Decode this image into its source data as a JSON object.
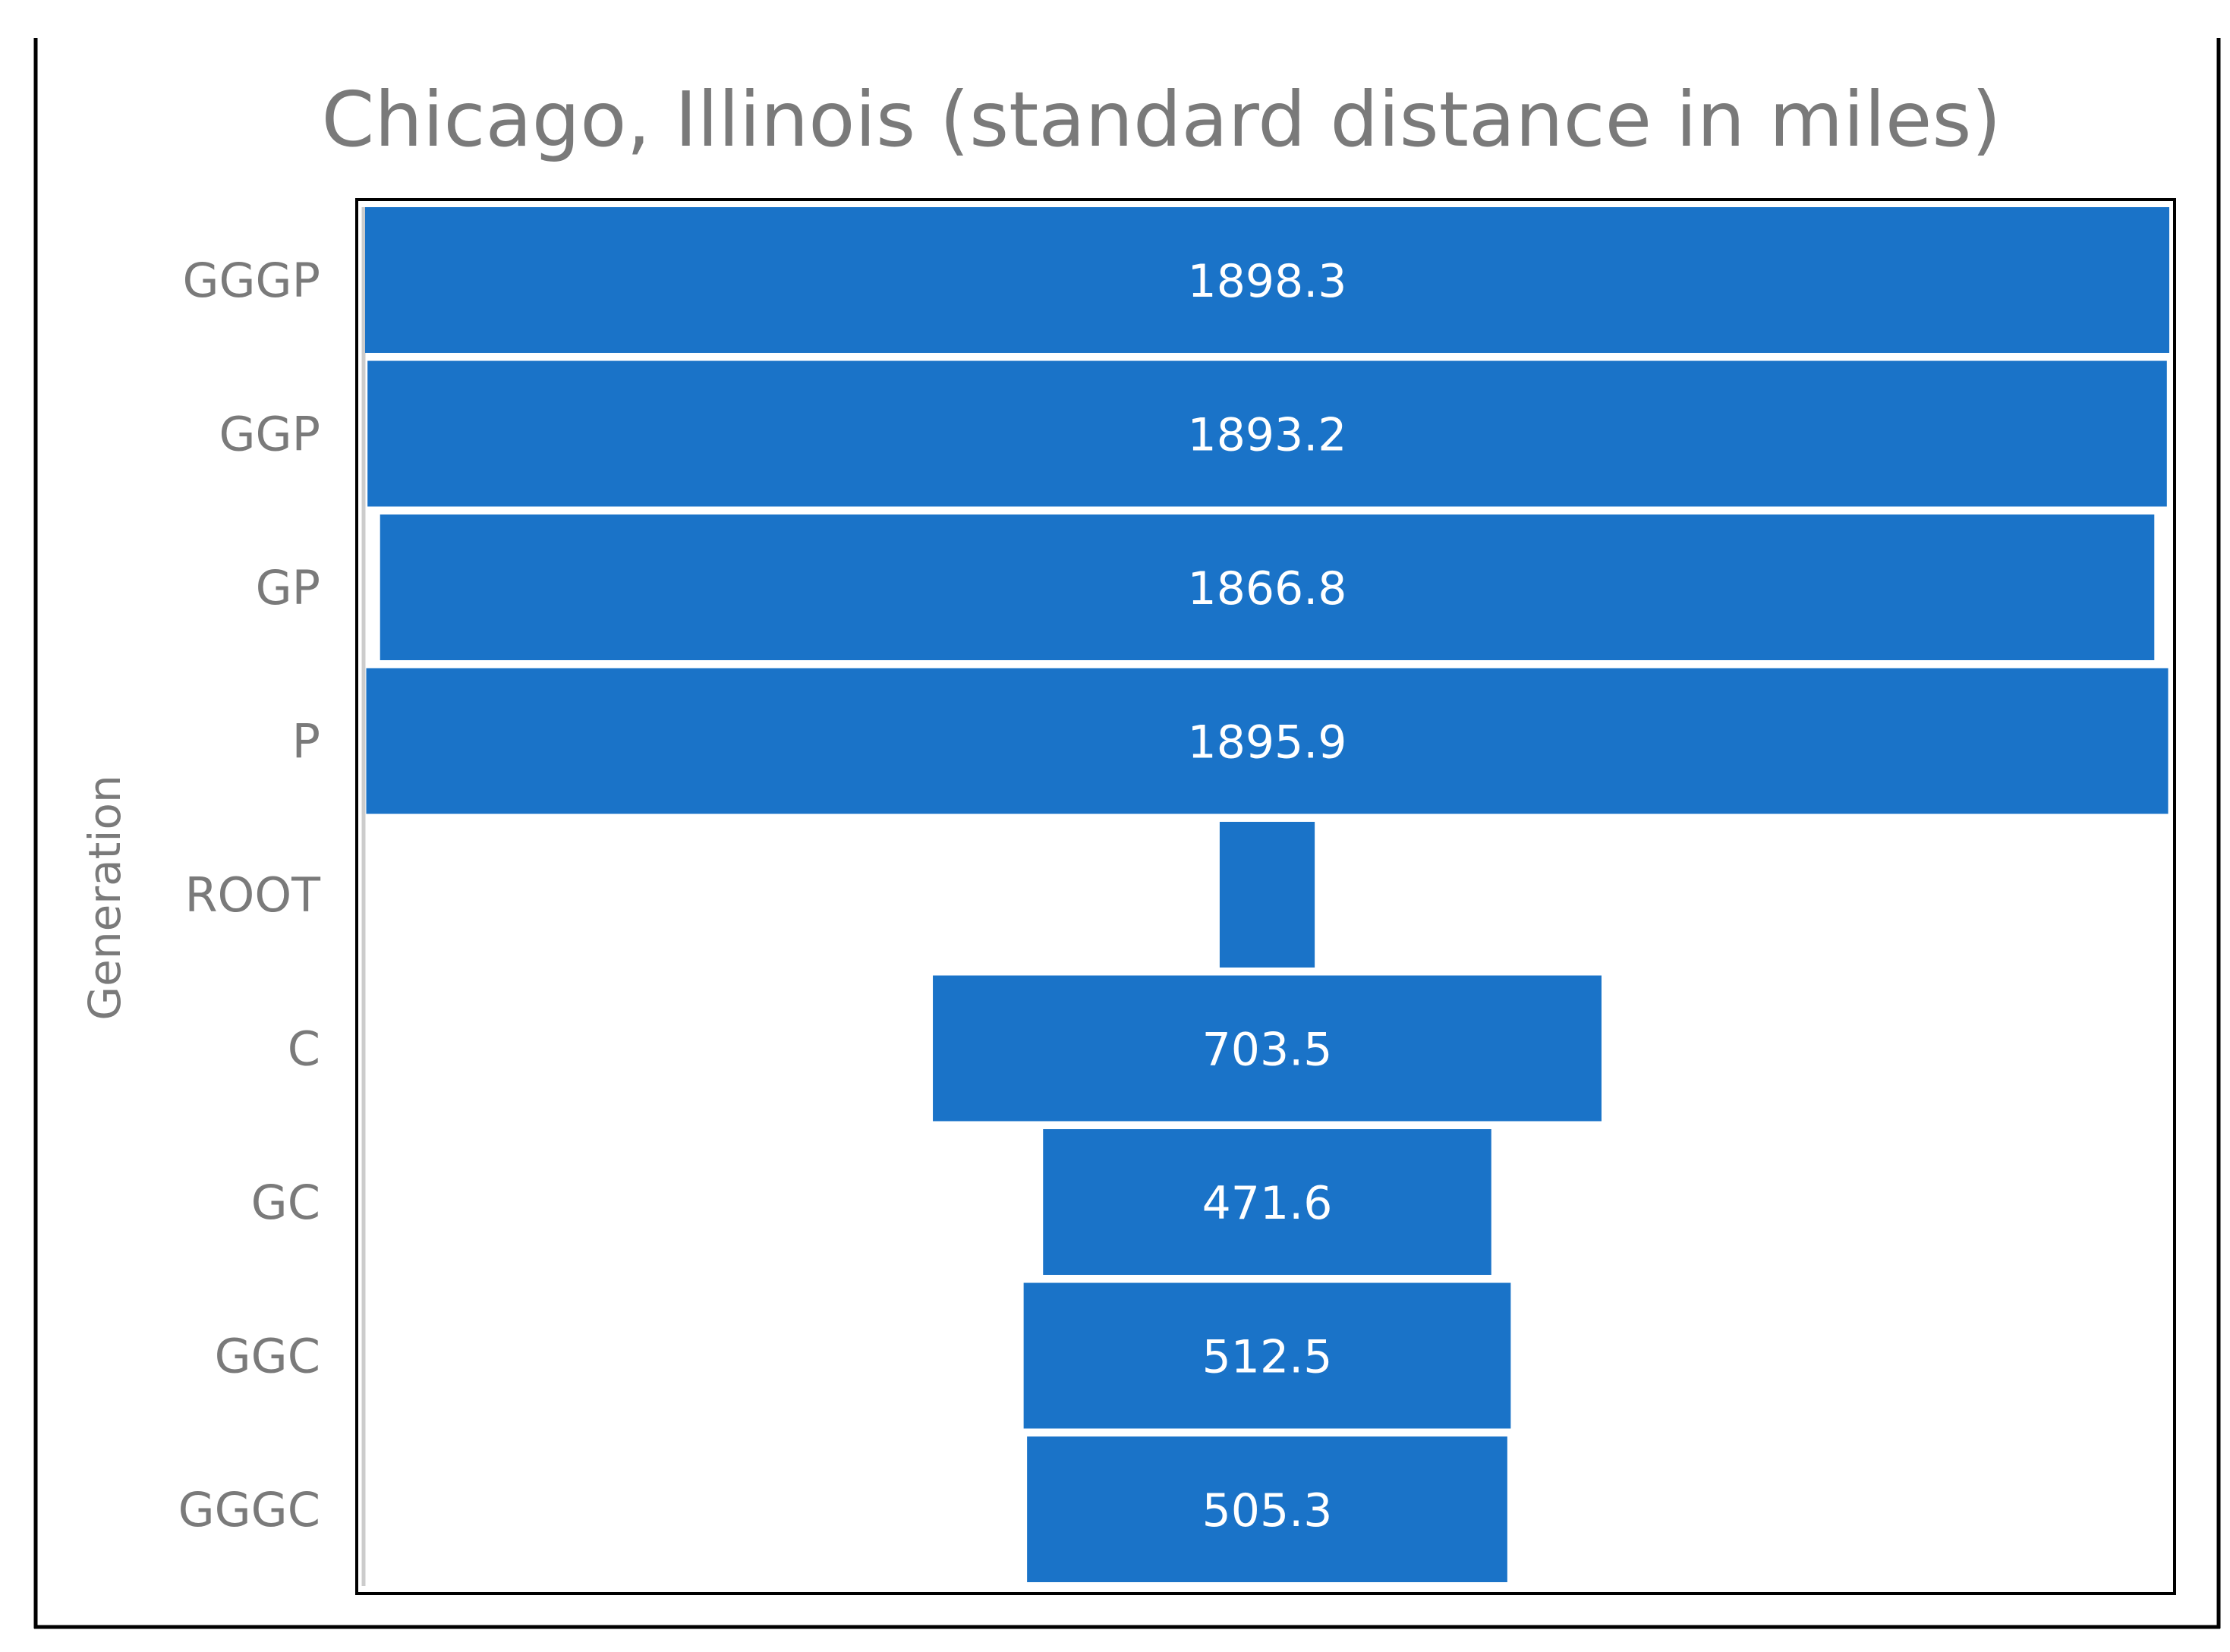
{
  "chart_data": {
    "type": "bar",
    "orientation": "horizontal-funnel",
    "title": "Chicago, Illinois (standard distance in miles)",
    "ylabel": "Generation",
    "xlabel": "",
    "categories": [
      "GGGP",
      "GGP",
      "GP",
      "P",
      "ROOT",
      "C",
      "GC",
      "GGC",
      "GGGC"
    ],
    "values": [
      1898.3,
      1893.2,
      1866.8,
      1895.9,
      100,
      703.5,
      471.6,
      512.5,
      505.3
    ],
    "value_labels": [
      "1898.3",
      "1893.2",
      "1866.8",
      "1895.9",
      "",
      "703.5",
      "471.6",
      "512.5",
      "505.3"
    ],
    "xlim": [
      0,
      1898.3
    ],
    "legend": "none",
    "grid": false,
    "colors": {
      "bar": "#1a73c8",
      "bar_label": "#ffffff",
      "text": "#7a7a7a",
      "frame": "#000000"
    }
  }
}
